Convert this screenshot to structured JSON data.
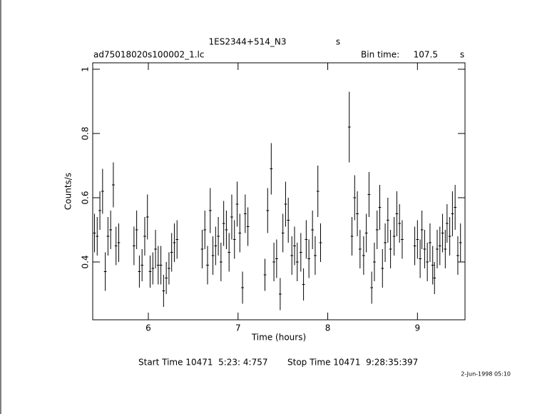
{
  "chart_data": {
    "type": "scatter",
    "title": "1ES2344+514_N3",
    "title_unit": "s",
    "file_name": "ad75018020s100002_1.lc",
    "bin_time_label": "Bin time:",
    "bin_time": 107.5,
    "bin_time_unit": "s",
    "x_label": "Time (hours)",
    "y_label": "Counts/s",
    "start_time": "Start Time 10471  5:23: 4:757",
    "stop_time": "Stop Time 10471  9:28:35:397",
    "date_stamp": "2-Jun-1998 05:10",
    "xlim": [
      5.38,
      9.53
    ],
    "ylim": [
      0.22,
      1.02
    ],
    "xticks": [
      6,
      7,
      8,
      9
    ],
    "yticks": [
      0.4,
      0.6,
      0.8,
      1
    ],
    "color": "#000000",
    "x": [
      5.4,
      5.43,
      5.46,
      5.49,
      5.52,
      5.55,
      5.58,
      5.61,
      5.64,
      5.67,
      5.84,
      5.87,
      5.9,
      5.93,
      5.96,
      5.99,
      6.02,
      6.05,
      6.08,
      6.11,
      6.14,
      6.17,
      6.2,
      6.23,
      6.26,
      6.29,
      6.32,
      6.6,
      6.63,
      6.66,
      6.69,
      6.72,
      6.75,
      6.78,
      6.81,
      6.84,
      6.87,
      6.9,
      6.93,
      6.96,
      6.99,
      7.02,
      7.05,
      7.08,
      7.11,
      7.3,
      7.33,
      7.37,
      7.4,
      7.43,
      7.47,
      7.5,
      7.53,
      7.56,
      7.6,
      7.63,
      7.66,
      7.7,
      7.73,
      7.76,
      7.79,
      7.83,
      7.86,
      7.89,
      7.92,
      8.24,
      8.27,
      8.3,
      8.33,
      8.36,
      8.4,
      8.43,
      8.46,
      8.49,
      8.52,
      8.55,
      8.58,
      8.61,
      8.64,
      8.67,
      8.7,
      8.74,
      8.77,
      8.8,
      8.83,
      8.97,
      9.0,
      9.03,
      9.05,
      9.08,
      9.11,
      9.14,
      9.17,
      9.19,
      9.22,
      9.25,
      9.28,
      9.31,
      9.33,
      9.36,
      9.39,
      9.42,
      9.45,
      9.48
    ],
    "values": [
      0.49,
      0.48,
      0.56,
      0.62,
      0.37,
      0.48,
      0.5,
      0.64,
      0.45,
      0.46,
      0.45,
      0.5,
      0.37,
      0.39,
      0.48,
      0.54,
      0.37,
      0.38,
      0.44,
      0.39,
      0.39,
      0.31,
      0.35,
      0.38,
      0.43,
      0.46,
      0.47,
      0.44,
      0.5,
      0.39,
      0.56,
      0.42,
      0.45,
      0.48,
      0.4,
      0.52,
      0.5,
      0.43,
      0.54,
      0.47,
      0.58,
      0.49,
      0.32,
      0.55,
      0.51,
      0.36,
      0.56,
      0.69,
      0.4,
      0.41,
      0.3,
      0.49,
      0.58,
      0.53,
      0.42,
      0.45,
      0.4,
      0.43,
      0.33,
      0.47,
      0.41,
      0.5,
      0.42,
      0.62,
      0.46,
      0.82,
      0.48,
      0.6,
      0.55,
      0.44,
      0.42,
      0.49,
      0.61,
      0.32,
      0.4,
      0.5,
      0.57,
      0.38,
      0.46,
      0.53,
      0.44,
      0.48,
      0.55,
      0.52,
      0.47,
      0.45,
      0.47,
      0.41,
      0.5,
      0.44,
      0.4,
      0.46,
      0.39,
      0.35,
      0.44,
      0.45,
      0.49,
      0.44,
      0.52,
      0.48,
      0.55,
      0.57,
      0.42,
      0.46
    ],
    "errors": [
      0.06,
      0.06,
      0.06,
      0.07,
      0.06,
      0.06,
      0.06,
      0.07,
      0.06,
      0.06,
      0.06,
      0.06,
      0.05,
      0.05,
      0.06,
      0.07,
      0.05,
      0.05,
      0.06,
      0.06,
      0.06,
      0.05,
      0.05,
      0.05,
      0.06,
      0.06,
      0.06,
      0.06,
      0.06,
      0.06,
      0.07,
      0.06,
      0.06,
      0.06,
      0.06,
      0.07,
      0.06,
      0.06,
      0.07,
      0.06,
      0.07,
      0.06,
      0.05,
      0.06,
      0.06,
      0.05,
      0.07,
      0.08,
      0.06,
      0.06,
      0.05,
      0.06,
      0.07,
      0.07,
      0.06,
      0.06,
      0.06,
      0.06,
      0.05,
      0.06,
      0.06,
      0.06,
      0.06,
      0.08,
      0.06,
      0.11,
      0.06,
      0.07,
      0.07,
      0.06,
      0.06,
      0.06,
      0.07,
      0.05,
      0.06,
      0.06,
      0.07,
      0.06,
      0.06,
      0.07,
      0.06,
      0.06,
      0.07,
      0.06,
      0.06,
      0.06,
      0.06,
      0.06,
      0.06,
      0.06,
      0.06,
      0.06,
      0.06,
      0.05,
      0.06,
      0.06,
      0.06,
      0.06,
      0.06,
      0.06,
      0.07,
      0.07,
      0.06,
      0.06
    ]
  }
}
